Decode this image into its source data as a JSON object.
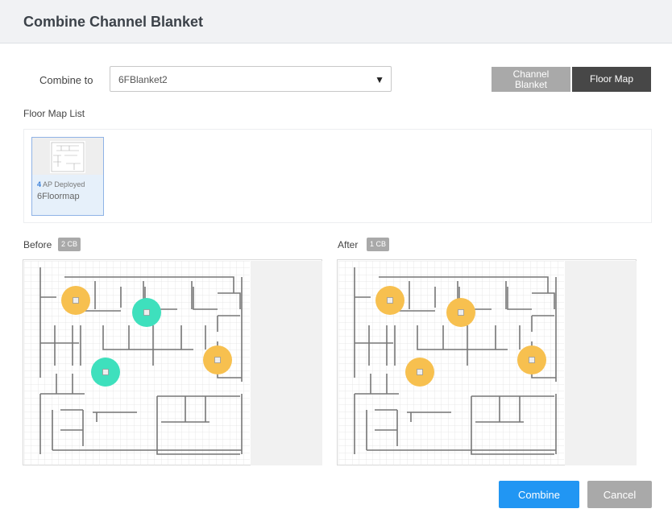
{
  "dialog": {
    "title": "Combine Channel Blanket"
  },
  "combine": {
    "label": "Combine to",
    "value": "6FBlanket2"
  },
  "view_toggle": {
    "channel_blanket": "Channel\nBlanket",
    "floor_map": "Floor Map",
    "active": "floor_map"
  },
  "floor_map_list": {
    "label": "Floor Map List",
    "items": [
      {
        "count": "4",
        "count_suffix": "AP Deployed",
        "name": "6Floormap",
        "selected": true
      }
    ]
  },
  "before": {
    "label": "Before",
    "badge": "2 CB",
    "aps": [
      "orange",
      "teal",
      "orange",
      "teal"
    ]
  },
  "after": {
    "label": "After",
    "badge": "1 CB",
    "aps": [
      "orange",
      "orange",
      "orange",
      "orange"
    ]
  },
  "colors": {
    "orange": "#f7c04f",
    "teal": "#3ee0bd",
    "primary": "#2196f3",
    "disabled": "#a9a9a9",
    "dark": "#474747"
  },
  "footer": {
    "combine": "Combine",
    "cancel": "Cancel"
  }
}
